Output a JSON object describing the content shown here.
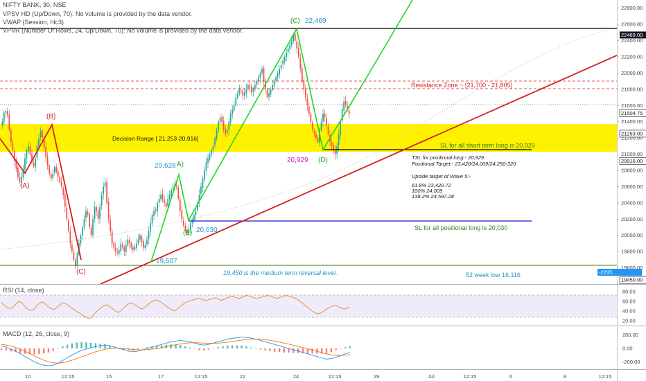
{
  "header": {
    "symbol_line": "NIFTY BANK, 30, NSE",
    "indicator_1": "VPSV HD (Up/Down, 70): No volume is provided by the data vendor.",
    "indicator_2": "VWAP (Session, hlc3)",
    "indicator_3": "VPVR (Number Of Rows, 24, Up/Down, 70): No volume is provided by the data vendor."
  },
  "price_axis": {
    "ticks": [
      "22800.00",
      "22600.00",
      "22400.00",
      "22200.00",
      "22000.00",
      "21800.00",
      "21600.00",
      "21400.00",
      "21200.00",
      "21000.00",
      "20800.00",
      "20600.00",
      "20400.00",
      "20200.00",
      "20000.00",
      "19800.00",
      "19600.00"
    ],
    "badges": [
      {
        "value": "22469.00",
        "bg": "#131722",
        "fg": "#ffffff"
      },
      {
        "value": "21504.75",
        "bg": "#ffffff",
        "fg": "#131722"
      },
      {
        "value": "21253.00",
        "bg": "#ffffff",
        "fg": "#131722"
      },
      {
        "value": "20916.00",
        "bg": "#ffffff",
        "fg": "#131722"
      },
      {
        "value": "19450.00",
        "bg": "#ffffff",
        "fg": "#131722"
      },
      {
        "value": "-2295.",
        "bg": "#2196f3",
        "fg": "#ffffff"
      }
    ]
  },
  "time_axis": {
    "labels": [
      "10",
      "12:15",
      "15",
      "17",
      "12:15",
      "22",
      "24",
      "12:15",
      "29",
      "Jul",
      "12:15",
      "6",
      "8",
      "12:15"
    ]
  },
  "colors": {
    "up_candle": "#26a69a",
    "down_candle": "#ef5350",
    "decision_zone": "#fff200",
    "green_line": "#22d622",
    "red_line": "#d61f1f",
    "blue_line": "#1a1ac8",
    "black_line": "#000000",
    "olive_text": "#3c7d12",
    "label_blue": "#2196c8",
    "label_green": "#1fa81f",
    "label_red": "#d11f2f",
    "label_magenta": "#d020c8"
  },
  "annotations": {
    "resistance_zone": "Resistance Zone :- [21,700 - 21,805]",
    "decision_range": "Decision Range [ 21,253-20,916]",
    "sl_short": "SL for all short term long is 20,929",
    "sl_positional": "SL for all positional long is 20,030",
    "reversal_level": "19,450 is the medium term reversal level.",
    "week_low": "52 week  low 16,116",
    "targets": [
      "TSL for positional long:- 20,929",
      "Positional Target:- 23,420/24,009/24,250-320",
      "",
      "Upside target of Wave 5:-",
      "",
      "61.8% 23,420.72",
      "100% 24,009",
      "138.2% 24,597.28"
    ]
  },
  "wave_labels": [
    {
      "text": "(B)",
      "color_key": "label_red"
    },
    {
      "text": "(A)",
      "color_key": "label_red"
    },
    {
      "text": "(C)",
      "color_key": "label_red"
    },
    {
      "text": "(C)",
      "color_key": "label_green"
    },
    {
      "text": "22,469",
      "color_key": "label_blue"
    },
    {
      "text": "20,628",
      "color_key": "label_blue"
    },
    {
      "text": "A)",
      "color_key": "label_green"
    },
    {
      "text": "(B)",
      "color_key": "label_green"
    },
    {
      "text": "20,030",
      "color_key": "label_blue"
    },
    {
      "text": "19,507",
      "color_key": "label_blue"
    },
    {
      "text": "20,929",
      "color_key": "label_magenta"
    },
    {
      "text": "(D)",
      "color_key": "label_green"
    }
  ],
  "rsi_panel": {
    "title": "RSI (14, close)",
    "ticks": [
      "80.00",
      "60.00",
      "40.00",
      "20.00"
    ]
  },
  "macd_panel": {
    "title": "MACD (12, 26, close, 9)",
    "ticks": [
      "200.00",
      "0.00",
      "-200.00"
    ]
  },
  "chart_data": {
    "type": "candlestick",
    "title": "NIFTY BANK, 30, NSE",
    "ylim": [
      19400,
      22900
    ],
    "price_path": [
      21400,
      21510,
      21530,
      21480,
      21300,
      21150,
      21050,
      20920,
      20820,
      20720,
      20660,
      20720,
      20820,
      20950,
      21050,
      21100,
      21000,
      20900,
      20850,
      20950,
      21100,
      21200,
      21290,
      21200,
      21080,
      20960,
      20860,
      20760,
      20700,
      20760,
      20840,
      20780,
      20720,
      20650,
      20600,
      20500,
      20350,
      20200,
      20050,
      19900,
      19800,
      19700,
      19620,
      19780,
      19900,
      20000,
      20100,
      20200,
      20300,
      20250,
      20100,
      20000,
      20200,
      20350,
      20300,
      20200,
      20350,
      20500,
      20600,
      20650,
      20400,
      20200,
      20050,
      19900,
      19850,
      19800,
      19780,
      19820,
      19900,
      19850,
      19800,
      19880,
      19950,
      19900,
      19850,
      19820,
      19860,
      19900,
      19950,
      20000,
      19920,
      19850,
      19880,
      19950,
      20050,
      20150,
      20250,
      20300,
      20300,
      20400,
      20450,
      20500,
      20450,
      20400,
      20350,
      20450,
      20500,
      20560,
      20600,
      20628,
      20600,
      20450,
      20300,
      20200,
      20120,
      20060,
      20030,
      20080,
      20150,
      20200,
      20250,
      20300,
      20400,
      20500,
      20600,
      20700,
      20800,
      20900,
      20950,
      21000,
      21050,
      21100,
      21200,
      21300,
      21400,
      21450,
      21400,
      21300,
      21250,
      21300,
      21400,
      21500,
      21550,
      21600,
      21700,
      21750,
      21800,
      21780,
      21720,
      21760,
      21800,
      21850,
      21820,
      21760,
      21800,
      21850,
      21900,
      21950,
      22000,
      22050,
      21900,
      21800,
      21700,
      21750,
      21800,
      21850,
      21900,
      21950,
      22000,
      22050,
      22100,
      22150,
      22200,
      22250,
      22300,
      22350,
      22400,
      22469,
      22400,
      22300,
      22200,
      22050,
      21900,
      21800,
      21700,
      21600,
      21500,
      21400,
      21300,
      21250,
      21200,
      21150,
      21300,
      21400,
      21500,
      21450,
      21350,
      21250,
      21150,
      21100,
      21050,
      21000,
      21100,
      21250,
      21400,
      21550,
      21650,
      21600,
      21550,
      21500
    ],
    "levels": [
      {
        "name": "resistance_upper",
        "value": 21805
      },
      {
        "name": "resistance_lower",
        "value": 21700
      },
      {
        "name": "decision_upper",
        "value": 21253
      },
      {
        "name": "decision_lower",
        "value": 20916
      },
      {
        "name": "sl_short",
        "value": 20929
      },
      {
        "name": "sl_positional",
        "value": 20030
      },
      {
        "name": "reversal_level",
        "value": 19450
      },
      {
        "name": "last_price",
        "value": 21504.75
      },
      {
        "name": "top",
        "value": 22469
      }
    ],
    "rsi": [
      58,
      52,
      47,
      45,
      48,
      55,
      60,
      57,
      50,
      44,
      41,
      43,
      50,
      56,
      59,
      54,
      49,
      45,
      43,
      48,
      53,
      57,
      55,
      51,
      46,
      42,
      38,
      35,
      30,
      27,
      24,
      29,
      36,
      42,
      47,
      51,
      53,
      49,
      45,
      40,
      37,
      42,
      48,
      53,
      57,
      55,
      51,
      47,
      44,
      48,
      53,
      58,
      61,
      63,
      60,
      56,
      51,
      47,
      43,
      40,
      44,
      49,
      54,
      58,
      60,
      62,
      64,
      66,
      65,
      63,
      61,
      64,
      66,
      67,
      65,
      62,
      64,
      67,
      69,
      70,
      68,
      66,
      68,
      71,
      72,
      70,
      68,
      66,
      67,
      69,
      71,
      72,
      70,
      68,
      66,
      68,
      70,
      72,
      71,
      69,
      67,
      64,
      60,
      55,
      50,
      45,
      40,
      37,
      34,
      36,
      40,
      44,
      47,
      50,
      52,
      49,
      46,
      44,
      46,
      48
    ],
    "macd": [
      40,
      20,
      -10,
      -40,
      -80,
      -120,
      -160,
      -200,
      -230,
      -250,
      -260,
      -250,
      -220,
      -180,
      -140,
      -100,
      -60,
      -30,
      -10,
      10,
      30,
      40,
      50,
      40,
      20,
      0,
      -20,
      -40,
      -50,
      -40,
      -20,
      0,
      20,
      40,
      60,
      80,
      100,
      110,
      120,
      110,
      100,
      80,
      60,
      50,
      60,
      80,
      100,
      120,
      140,
      150,
      160,
      170,
      165,
      155,
      140,
      120,
      100,
      80,
      60,
      40,
      20,
      0,
      -20,
      -40,
      -60,
      -80,
      -100,
      -120,
      -140,
      -160,
      -150,
      -130,
      -110,
      -80,
      -60
    ],
    "signal": [
      60,
      50,
      35,
      15,
      -10,
      -40,
      -75,
      -110,
      -145,
      -175,
      -200,
      -215,
      -220,
      -212,
      -195,
      -175,
      -150,
      -125,
      -100,
      -75,
      -50,
      -30,
      -12,
      0,
      5,
      5,
      0,
      -8,
      -16,
      -22,
      -22,
      -18,
      -10,
      0,
      12,
      26,
      40,
      55,
      68,
      78,
      85,
      86,
      84,
      80,
      77,
      77,
      80,
      86,
      95,
      105,
      115,
      125,
      133,
      138,
      140,
      137,
      131,
      121,
      109,
      95,
      80,
      64,
      47,
      30,
      12,
      -6,
      -24,
      -43,
      -62,
      -82,
      -96,
      -103,
      -105,
      -100,
      -92
    ]
  }
}
